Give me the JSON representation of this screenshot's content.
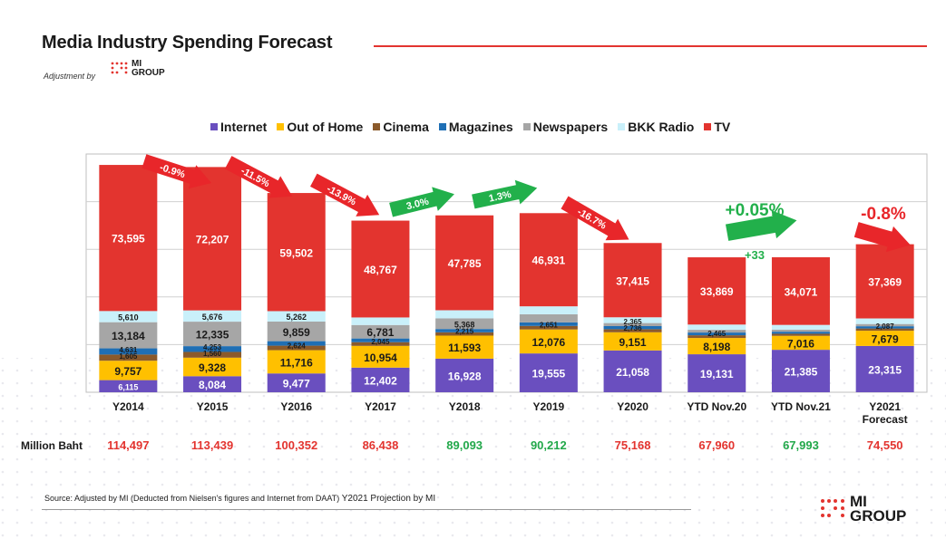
{
  "page": {
    "title": "Media Industry Spending Forecast",
    "subtitle": "Adjustment by",
    "logo": {
      "line1": "MI",
      "line2": "GROUP",
      "dot_color": "#e3342f"
    },
    "accent_color": "#e3342f",
    "total_row_label": "Million Baht",
    "source_prefix": "Source: Adjusted by MI (Deducted  from Nielsen's figures and Internet from DAAT)",
    "source_projection": "Y2021 Projection by MI"
  },
  "chart_data": {
    "type": "bar",
    "stacked": true,
    "legend_position": "top",
    "categories": [
      "Y2014",
      "Y2015",
      "Y2016",
      "Y2017",
      "Y2018",
      "Y2019",
      "Y2020",
      "YTD Nov.20",
      "YTD Nov.21",
      "Y2021\nForecast"
    ],
    "series": [
      {
        "name": "Internet",
        "color": "#6a4fbf",
        "values": [
          6115,
          8084,
          9477,
          12402,
          16928,
          19555,
          21058,
          19131,
          21385,
          23315
        ]
      },
      {
        "name": "Out of Home",
        "color": "#ffc000",
        "values": [
          9757,
          9328,
          11716,
          10954,
          11593,
          12076,
          9151,
          8198,
          7016,
          7679
        ]
      },
      {
        "name": "Cinema",
        "color": "#8b5a2b",
        "values": [
          null,
          null,
          null,
          null,
          null,
          null,
          null,
          null,
          null,
          null
        ]
      },
      {
        "name": "Magazines",
        "color": "#1f6fb5",
        "values": [
          null,
          null,
          null,
          null,
          null,
          null,
          null,
          null,
          null,
          null
        ]
      },
      {
        "name": "Newspapers",
        "color": "#a6a6a6",
        "values": [
          13184,
          12335,
          9859,
          6781,
          5368,
          4078,
          null,
          null,
          null,
          null
        ]
      },
      {
        "name": "BKK Radio",
        "color": "#c9f0fa",
        "values": [
          5610,
          5676,
          5262,
          3805,
          4081,
          4023,
          2898,
          2640,
          2360,
          2809
        ]
      },
      {
        "name": "TV",
        "color": "#e3342f",
        "values": [
          73595,
          72207,
          59502,
          48767,
          47785,
          46931,
          37415,
          33869,
          34071,
          37369
        ]
      }
    ],
    "minor_labels": [
      [
        "1,605",
        "4,631"
      ],
      [
        "1,560",
        "4,253"
      ],
      [
        "2,624"
      ],
      [
        "2,045"
      ],
      [
        "2,215"
      ],
      [
        "2,651"
      ],
      [
        "2,736",
        "2,365"
      ],
      [
        "2,465"
      ],
      [],
      [
        "2,087"
      ]
    ],
    "totals": [
      114497,
      113439,
      100352,
      86438,
      89093,
      90212,
      75168,
      67960,
      67993,
      74550
    ],
    "total_labels": [
      "114,497",
      "113,439",
      "100,352",
      "86,438",
      "89,093",
      "90,212",
      "75,168",
      "67,960",
      "67,993",
      "74,550"
    ],
    "total_colors": [
      "#e3342f",
      "#e3342f",
      "#e3342f",
      "#e3342f",
      "#22a84a",
      "#22a84a",
      "#e3342f",
      "#e3342f",
      "#22a84a",
      "#e3342f"
    ],
    "growth": [
      {
        "label": "-0.9%",
        "direction": "down"
      },
      {
        "label": "-11.5%",
        "direction": "down"
      },
      {
        "label": "-13.9%",
        "direction": "down"
      },
      {
        "label": "3.0%",
        "direction": "up"
      },
      {
        "label": "1.3%",
        "direction": "up"
      },
      {
        "label": "-16.7%",
        "direction": "down"
      },
      {
        "label": "+0.05%",
        "sub": "+33",
        "direction": "up"
      },
      {
        "label": "-0.8%",
        "direction": "down"
      }
    ],
    "ylim": [
      0,
      120000
    ],
    "xlabel": "",
    "ylabel": "",
    "grid": "horizontal"
  }
}
